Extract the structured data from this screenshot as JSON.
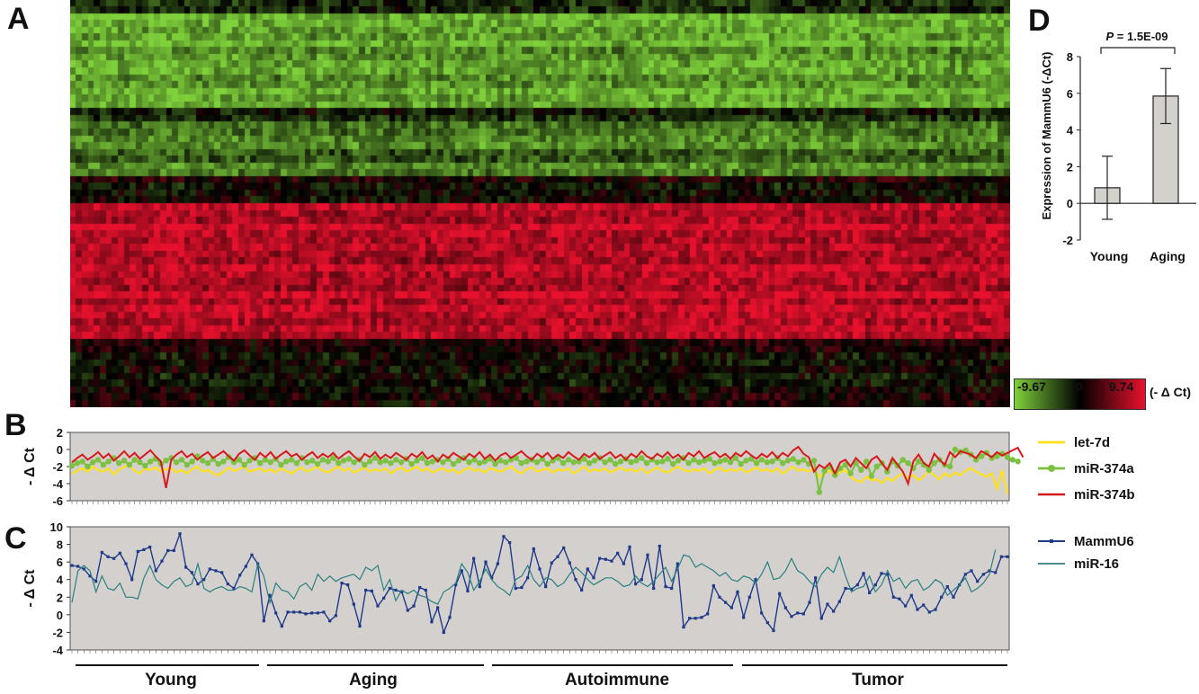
{
  "panels": {
    "a": "A",
    "b": "B",
    "c": "C",
    "d": "D"
  },
  "heatmap": {
    "legend_min": "-9.67",
    "legend_mid": "0",
    "legend_max": "9.74",
    "legend_unit": "(- Δ Ct)",
    "colors": {
      "low": "#7fd13b",
      "mid": "#000000",
      "high": "#e8112d"
    }
  },
  "groups": [
    "Young",
    "Aging",
    "Autoimmune",
    "Tumor"
  ],
  "chart_data": [
    {
      "panel": "B",
      "type": "line",
      "ylabel": "- Δ Ct",
      "ylim": [
        -6,
        2
      ],
      "yticks": [
        "2",
        "0",
        "-2",
        "-4",
        "-6"
      ],
      "grid": false,
      "legend_position": "right",
      "series": [
        {
          "name": "let-7d",
          "color": "#ffe11a",
          "values": [
            -2.8,
            -2.5,
            -2.2,
            -2.6,
            -2.0,
            -2.4,
            -2.6,
            -2.2,
            -2.9,
            -2.4,
            -2.0,
            -1.8,
            -2.5,
            -2.8,
            -2.2,
            -2.4,
            -2.1,
            -2.6,
            -2.3,
            -2.2,
            -2.7,
            -2.4,
            -2.8,
            -2.3,
            -2.0,
            -2.6,
            -2.4,
            -2.8,
            -3.0,
            -2.6,
            -2.1,
            -2.5,
            -2.3,
            -2.0,
            -2.6,
            -2.4,
            -2.2,
            -2.6,
            -2.3,
            -2.7,
            -2.2,
            -2.5,
            -2.8,
            -2.4,
            -2.1,
            -2.6,
            -2.3,
            -2.0,
            -2.5,
            -2.7,
            -2.3,
            -2.0,
            -2.5,
            -2.2,
            -2.7,
            -2.4,
            -2.1,
            -2.6,
            -2.3,
            -2.5,
            -2.2,
            -2.8,
            -2.4,
            -2.1,
            -2.6,
            -2.3,
            -2.0,
            -2.5,
            -2.2,
            -2.7,
            -2.4,
            -2.2,
            -2.6,
            -2.3,
            -2.8,
            -2.4,
            -2.1,
            -2.5,
            -2.3,
            -2.7,
            -2.2,
            -2.4,
            -2.6,
            -2.3,
            -2.0,
            -2.5,
            -2.8,
            -2.3,
            -2.1,
            -2.6,
            -2.4,
            -2.2,
            -2.7,
            -2.3,
            -2.5,
            -2.2,
            -2.8,
            -2.4,
            -2.0,
            -2.6,
            -2.3,
            -2.5,
            -2.2,
            -2.7,
            -2.4,
            -2.1,
            -2.5,
            -2.3,
            -2.6,
            -2.2,
            -2.8,
            -2.4,
            -2.1,
            -2.5,
            -2.7,
            -2.3,
            -2.0,
            -2.4,
            -2.6,
            -2.3,
            -2.5,
            -2.2,
            -2.8,
            -2.4,
            -2.1,
            -2.6,
            -2.3,
            -2.5,
            -2.2,
            -2.7,
            -2.4,
            -2.1,
            -2.5,
            -2.3,
            -2.6,
            -2.2,
            -2.8,
            -2.4,
            -2.0,
            -2.5,
            -2.3,
            -2.6,
            -2.1,
            -3.2,
            -2.8,
            -2.5,
            -3.0,
            -2.7,
            -2.4,
            -3.2,
            -3.6,
            -3.8,
            -3.2,
            -3.6,
            -3.5,
            -3.9,
            -3.3,
            -3.7,
            -3.1,
            -2.8,
            -3.4,
            -3.0,
            -3.6,
            -3.2,
            -2.5,
            -3.0,
            -3.5,
            -2.8,
            -3.2,
            -2.7,
            -3.0,
            -2.5,
            -2.2,
            -2.6,
            -2.9,
            -3.2,
            -2.8,
            -4.6,
            -2.4,
            -5.2
          ]
        },
        {
          "name": "miR-374a",
          "color": "#7cc142",
          "values": [
            -1.9,
            -1.6,
            -1.4,
            -2.0,
            -1.5,
            -1.2,
            -1.8,
            -1.4,
            -1.0,
            -1.6,
            -1.3,
            -1.8,
            -1.2,
            -1.5,
            -1.9,
            -1.4,
            -1.1,
            -1.7,
            -1.3,
            -1.0,
            -1.5,
            -1.2,
            -1.8,
            -1.4,
            -0.8,
            -1.3,
            -1.6,
            -1.1,
            -1.7,
            -1.4,
            -0.9,
            -1.5,
            -1.2,
            -1.8,
            -1.3,
            -1.0,
            -1.6,
            -1.2,
            -1.5,
            -1.1,
            -1.8,
            -1.4,
            -1.2,
            -1.6,
            -1.0,
            -1.5,
            -1.3,
            -1.7,
            -1.2,
            -1.4,
            -1.0,
            -1.6,
            -1.3,
            -1.1,
            -1.5,
            -1.2,
            -1.8,
            -1.4,
            -1.0,
            -1.5,
            -1.3,
            -1.6,
            -1.2,
            -1.5,
            -1.1,
            -1.7,
            -1.3,
            -1.0,
            -1.6,
            -1.4,
            -1.2,
            -1.5,
            -1.1,
            -1.7,
            -1.3,
            -1.0,
            -1.5,
            -1.2,
            -1.6,
            -1.4,
            -1.1,
            -1.7,
            -1.3,
            -1.5,
            -1.2,
            -1.0,
            -1.6,
            -1.4,
            -1.2,
            -1.5,
            -1.1,
            -1.7,
            -1.3,
            -1.0,
            -1.6,
            -1.2,
            -1.5,
            -1.4,
            -1.1,
            -1.6,
            -1.3,
            -1.0,
            -1.5,
            -1.2,
            -1.7,
            -1.4,
            -1.1,
            -1.5,
            -1.3,
            -1.0,
            -1.6,
            -1.2,
            -1.5,
            -1.4,
            -1.1,
            -1.7,
            -1.3,
            -1.0,
            -1.6,
            -1.2,
            -1.5,
            -1.3,
            -1.1,
            -1.6,
            -1.4,
            -1.2,
            -1.5,
            -1.0,
            -1.7,
            -1.3,
            -1.1,
            -1.6,
            -1.2,
            -1.5,
            -1.4,
            -1.0,
            -1.6,
            -1.3,
            -1.1,
            -1.5,
            -1.2,
            -1.7,
            -1.3,
            -5.0,
            -2.5,
            -2.0,
            -3.0,
            -2.2,
            -1.8,
            -2.8,
            -1.6,
            -2.4,
            -1.4,
            -3.1,
            -2.0,
            -1.6,
            -2.6,
            -1.4,
            -1.9,
            -1.2,
            -1.6,
            -2.2,
            -1.4,
            -1.8,
            -2.4,
            -1.6,
            -1.2,
            -1.8,
            -2.0,
            0.0,
            -0.3,
            -0.1,
            -0.6,
            -1.2,
            -0.8,
            -0.4,
            -1.0,
            -0.8,
            -0.5,
            -0.9,
            -1.2,
            -1.4
          ]
        },
        {
          "name": "miR-374b",
          "color": "#d7191c",
          "values": [
            -1.5,
            -1.0,
            -0.6,
            -1.2,
            -0.8,
            -0.3,
            -1.0,
            -0.5,
            -1.3,
            -0.8,
            -0.2,
            -0.9,
            -0.4,
            -1.1,
            -0.6,
            -0.1,
            -0.8,
            -1.4,
            -4.5,
            -1.2,
            -0.6,
            -0.2,
            -0.9,
            -0.5,
            -1.2,
            -0.7,
            -0.3,
            -1.0,
            -0.6,
            -0.2,
            -0.8,
            -1.3,
            -0.5,
            -0.1,
            -0.7,
            -1.2,
            -0.4,
            -0.9,
            -0.3,
            -1.1,
            -0.6,
            -0.2,
            -0.8,
            -0.5,
            -1.2,
            -0.7,
            -0.3,
            -1.0,
            -0.5,
            -0.9,
            -0.4,
            -1.1,
            -0.6,
            -0.2,
            -0.8,
            -1.3,
            -0.5,
            -0.9,
            -0.3,
            -1.1,
            -0.6,
            -1.0,
            -0.4,
            -0.8,
            -1.2,
            -0.5,
            -0.9,
            -0.3,
            -1.1,
            -0.7,
            -1.4,
            -0.6,
            -1.0,
            -0.4,
            -0.8,
            -1.2,
            -0.5,
            -0.9,
            -0.3,
            -1.1,
            -0.6,
            -1.3,
            -0.7,
            -0.4,
            -1.0,
            -0.6,
            -0.2,
            -0.8,
            -1.2,
            -0.5,
            -0.9,
            -0.4,
            -1.1,
            -0.6,
            -1.0,
            -0.3,
            -0.8,
            -1.2,
            -0.5,
            -0.9,
            -0.4,
            -1.1,
            -0.7,
            -0.3,
            -1.0,
            -0.6,
            -1.2,
            -0.5,
            -0.9,
            -0.2,
            -0.8,
            -1.1,
            -0.5,
            -0.9,
            -0.3,
            -1.0,
            -0.6,
            -1.2,
            -0.4,
            -0.8,
            -0.2,
            -1.0,
            -0.6,
            -0.3,
            -0.9,
            -0.5,
            -1.1,
            -0.4,
            -0.8,
            -0.2,
            -0.7,
            -1.1,
            -0.5,
            -0.9,
            -0.3,
            -1.0,
            -0.4,
            -0.8,
            -0.1,
            0.3,
            -0.5,
            -0.9,
            -2.6,
            -1.8,
            -2.2,
            -1.6,
            -2.8,
            -1.5,
            -1.2,
            -2.0,
            -1.0,
            -1.6,
            -2.2,
            -1.2,
            -0.8,
            -1.6,
            -2.4,
            -1.0,
            -1.8,
            -2.6,
            -4.0,
            -1.4,
            -0.6,
            -1.6,
            -2.0,
            -0.5,
            -1.2,
            -1.8,
            -0.3,
            -0.9,
            -0.2,
            -0.4,
            -0.6,
            -1.0,
            -0.2,
            -0.5,
            -0.9,
            -0.3,
            -0.7,
            -0.4,
            -0.1,
            0.2,
            -0.9
          ]
        }
      ]
    },
    {
      "panel": "C",
      "type": "line",
      "ylabel": "- Δ Ct",
      "ylim": [
        -4,
        10
      ],
      "yticks": [
        "10",
        "8",
        "6",
        "4",
        "2",
        "0",
        "-2",
        "-4"
      ],
      "grid": false,
      "legend_position": "right",
      "series": [
        {
          "name": "MammU6",
          "color": "#1f3a8a",
          "values": [
            5.6,
            5.5,
            5.2,
            4.4,
            3.8,
            7.1,
            6.6,
            6.4,
            7.0,
            5.8,
            4.0,
            7.2,
            7.4,
            7.7,
            5.0,
            6.1,
            7.3,
            7.3,
            9.2,
            5.4,
            4.8,
            3.5,
            4.0,
            5.2,
            5.0,
            4.8,
            3.5,
            3.0,
            4.5,
            5.5,
            6.8,
            5.8,
            -0.7,
            2.2,
            0.2,
            -1.3,
            0.3,
            0.3,
            0.3,
            0.1,
            0.2,
            0.2,
            0.3,
            -0.7,
            -0.1,
            3.6,
            3.4,
            1.2,
            -1.3,
            2.8,
            2.7,
            1.0,
            1.9,
            3.0,
            2.8,
            2.6,
            0.5,
            1.0,
            3.1,
            2.8,
            -0.8,
            0.8,
            -2.0,
            -0.3,
            3.4,
            5.0,
            2.7,
            6.4,
            3.2,
            6.0,
            4.2,
            5.8,
            8.9,
            8.2,
            3.0,
            3.1,
            4.2,
            7.5,
            5.2,
            3.2,
            5.9,
            6.6,
            7.6,
            5.9,
            4.0,
            2.8,
            5.2,
            4.2,
            6.4,
            6.3,
            6.1,
            7.0,
            5.8,
            7.7,
            3.5,
            4.0,
            6.8,
            3.0,
            7.8,
            3.2,
            3.0,
            5.8,
            -1.4,
            -0.4,
            -0.4,
            -0.3,
            0.1,
            3.3,
            2.0,
            1.4,
            0.8,
            2.6,
            -0.3,
            2.0,
            4.0,
            0.2,
            -0.9,
            -1.8,
            2.4,
            0.8,
            -0.2,
            0.2,
            0.1,
            1.4,
            4.2,
            -0.4,
            1.2,
            0.4,
            1.5,
            3.0,
            2.9,
            3.4,
            4.7,
            2.5,
            3.4,
            4.7,
            4.6,
            2.0,
            1.8,
            1.0,
            2.2,
            0.6,
            1.1,
            0.3,
            0.6,
            2.0,
            3.2,
            2.0,
            3.4,
            4.6,
            5.0,
            3.8,
            4.6,
            5.0,
            4.8,
            6.6,
            6.6
          ]
        },
        {
          "name": "miR-16",
          "color": "#2a8080",
          "values": [
            1.4,
            5.0,
            5.6,
            5.0,
            2.6,
            4.4,
            3.0,
            2.8,
            3.6,
            2.0,
            2.0,
            1.8,
            4.2,
            5.6,
            4.0,
            3.4,
            3.0,
            3.8,
            4.2,
            3.2,
            3.5,
            5.8,
            3.0,
            2.6,
            3.0,
            3.2,
            2.8,
            2.8,
            3.2,
            3.0,
            2.6,
            5.8,
            4.4,
            1.4,
            3.6,
            2.8,
            2.6,
            1.8,
            3.2,
            3.6,
            2.8,
            4.6,
            3.8,
            4.4,
            3.8,
            4.2,
            4.4,
            4.6,
            4.0,
            5.4,
            5.0,
            5.6,
            2.8,
            4.0,
            1.6,
            2.8,
            2.4,
            2.8,
            2.2,
            2.0,
            1.5,
            1.2,
            2.6,
            3.0,
            3.6,
            5.8,
            4.8,
            2.8,
            3.8,
            5.2,
            4.0,
            3.2,
            2.8,
            2.2,
            4.0,
            4.4,
            5.6,
            4.0,
            3.2,
            4.2,
            4.0,
            3.2,
            3.6,
            4.6,
            5.4,
            4.8,
            4.0,
            3.4,
            3.8,
            4.2,
            4.2,
            3.8,
            3.2,
            3.4,
            4.4,
            3.6,
            3.2,
            3.8,
            4.6,
            5.4,
            3.8,
            5.2,
            6.8,
            6.6,
            5.4,
            5.8,
            5.4,
            5.0,
            4.4,
            4.8,
            4.0,
            3.8,
            4.4,
            4.2,
            3.6,
            4.6,
            6.0,
            4.0,
            4.2,
            5.0,
            6.4,
            5.0,
            4.6,
            3.8,
            3.2,
            4.6,
            5.4,
            4.8,
            6.6,
            4.4,
            2.6,
            3.0,
            3.2,
            4.4,
            2.6,
            3.4,
            5.0,
            3.8,
            4.2,
            3.0,
            3.8,
            4.0,
            2.8,
            3.2,
            4.0,
            3.6,
            2.2,
            2.8,
            3.4,
            4.2,
            2.6,
            3.0,
            3.6,
            4.6,
            7.4
          ]
        }
      ]
    },
    {
      "panel": "D",
      "type": "bar",
      "categories": [
        "Young",
        "Aging"
      ],
      "values": [
        0.85,
        5.85
      ],
      "errors": [
        1.72,
        1.5
      ],
      "ylabel": "Expression of MammU6 (-ΔCt)",
      "ylim": [
        -2,
        8
      ],
      "yticks": [
        "8",
        "6",
        "4",
        "2",
        "0",
        "-2"
      ],
      "annotation": "P = 1.5E-09",
      "annotation_prefix": "P",
      "annotation_value": " = 1.5E-09",
      "bar_color": "#d4d0cc"
    }
  ]
}
